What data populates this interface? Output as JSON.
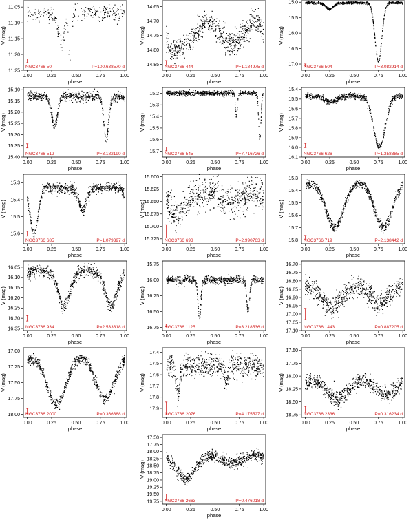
{
  "figure": {
    "x_label": "phase",
    "y_label": "V (mag)",
    "point_color": "#000000",
    "annotation_color": "#d11a1a"
  },
  "chart_data": [
    {
      "type": "scatter",
      "star": "NGC3766 50",
      "period": "P=100.638570 d",
      "yticks": [
        "11.05",
        "11.10",
        "11.15",
        "11.20",
        "11.25"
      ],
      "ylim": [
        11.03,
        11.25
      ],
      "xticks": [
        "0.00",
        "0.25",
        "0.50",
        "0.75",
        "1.00"
      ],
      "xlim": [
        -0.04,
        1.02
      ],
      "base": 11.07,
      "noise": 0.012,
      "dips": [
        [
          0.32,
          0.05,
          0.02
        ],
        [
          0.36,
          0.1,
          0.02
        ],
        [
          0.44,
          0.15,
          0.015
        ]
      ],
      "model": "sparse",
      "err": [
        0.0,
        11.22,
        0.004
      ]
    },
    {
      "type": "scatter",
      "star": "NGC3766 444",
      "period": "P=1.184975 d",
      "yticks": [
        "14.65",
        "14.70",
        "14.75",
        "14.80",
        "14.85"
      ],
      "ylim": [
        14.63,
        14.87
      ],
      "xticks": [
        "0.00",
        "0.25",
        "0.50",
        "0.75",
        "1.00"
      ],
      "xlim": [
        -0.04,
        1.02
      ],
      "base": 14.74,
      "noise": 0.02,
      "dips": [
        [
          0.05,
          0.06,
          0.05
        ]
      ],
      "model": "wave",
      "amp": 0.04,
      "err": [
        0.0,
        14.845,
        0.006
      ]
    },
    {
      "type": "scatter",
      "star": "NGC3766 504",
      "period": "P=3.082914 d",
      "yticks": [
        "15.0",
        "15.5",
        "16.0",
        "16.5",
        "17.0"
      ],
      "ylim": [
        14.95,
        17.2
      ],
      "xticks": [
        "0.00",
        "0.25",
        "0.50",
        "0.75",
        "1.00"
      ],
      "xlim": [
        -0.04,
        1.02
      ],
      "base": 15.02,
      "noise": 0.02,
      "dips": [
        [
          0.25,
          0.2,
          0.04
        ],
        [
          0.75,
          1.9,
          0.035
        ]
      ],
      "model": "eb",
      "err": [
        0.0,
        17.05,
        0.03
      ]
    },
    {
      "type": "scatter",
      "star": "NGC3766 512",
      "period": "P=3.182190 d",
      "yticks": [
        "15.10",
        "15.15",
        "15.20",
        "15.25",
        "15.30",
        "15.35",
        "15.40"
      ],
      "ylim": [
        15.09,
        15.4
      ],
      "xticks": [
        "0.00",
        "0.25",
        "0.50",
        "0.75",
        "1.00"
      ],
      "xlim": [
        -0.04,
        1.02
      ],
      "base": 15.13,
      "noise": 0.01,
      "dips": [
        [
          0.28,
          0.13,
          0.03
        ],
        [
          0.81,
          0.19,
          0.025
        ]
      ],
      "model": "eb",
      "err": [
        0.0,
        15.35,
        0.006
      ]
    },
    {
      "type": "scatter",
      "star": "NGC3766 545",
      "period": "P=7.716726 d",
      "yticks": [
        "15.2",
        "15.3",
        "15.4",
        "15.5",
        "15.6",
        "15.7"
      ],
      "ylim": [
        15.15,
        15.75
      ],
      "xticks": [
        "0.00",
        "0.25",
        "0.50",
        "0.75",
        "1.00"
      ],
      "xlim": [
        -0.04,
        1.02
      ],
      "base": 15.2,
      "noise": 0.01,
      "dips": [
        [
          0.72,
          0.2,
          0.01
        ],
        [
          0.96,
          0.4,
          0.012
        ]
      ],
      "model": "eb",
      "err": [
        0.0,
        15.68,
        0.01
      ]
    },
    {
      "type": "scatter",
      "star": "NGC3766 626",
      "period": "P=1.358385 d",
      "yticks": [
        "15.4",
        "15.5",
        "15.6",
        "15.7",
        "15.8",
        "15.9",
        "16.0",
        "16.1"
      ],
      "ylim": [
        15.38,
        16.1
      ],
      "xticks": [
        "0.00",
        "0.25",
        "0.50",
        "0.75",
        "1.00"
      ],
      "xlim": [
        -0.04,
        1.02
      ],
      "base": 15.47,
      "noise": 0.015,
      "dips": [
        [
          0.26,
          0.06,
          0.06
        ],
        [
          0.76,
          0.53,
          0.06
        ]
      ],
      "model": "eb",
      "err": [
        0.0,
        15.98,
        0.015
      ]
    },
    {
      "type": "scatter",
      "star": "NGC3766 685",
      "period": "P=1.079397 d",
      "yticks": [
        "15.3",
        "15.4",
        "15.5",
        "15.6"
      ],
      "ylim": [
        15.25,
        15.66
      ],
      "xticks": [
        "0.00",
        "0.25",
        "0.50",
        "0.75",
        "1.00"
      ],
      "xlim": [
        -0.04,
        1.02
      ],
      "base": 15.33,
      "noise": 0.015,
      "dips": [
        [
          0.07,
          0.28,
          0.04
        ],
        [
          0.57,
          0.13,
          0.04
        ]
      ],
      "model": "eb",
      "err": [
        0.0,
        15.6,
        0.01
      ]
    },
    {
      "type": "scatter",
      "star": "NGC3766 693",
      "period": "P=2.990763 d",
      "yticks": [
        "15.600",
        "15.625",
        "15.650",
        "15.675",
        "15.700",
        "15.725"
      ],
      "ylim": [
        15.595,
        15.735
      ],
      "xticks": [
        "0.00",
        "0.25",
        "0.50",
        "0.75",
        "1.00"
      ],
      "xlim": [
        -0.04,
        1.02
      ],
      "base": 15.64,
      "noise": 0.015,
      "dips": [
        [
          0.1,
          0.035,
          0.06
        ]
      ],
      "model": "wave",
      "amp": 0.008,
      "err": [
        0.0,
        15.71,
        0.012
      ]
    },
    {
      "type": "scatter",
      "star": "NGC3766 719",
      "period": "P=2.138442 d",
      "yticks": [
        "15.3",
        "15.4",
        "15.5",
        "15.6",
        "15.7",
        "15.8"
      ],
      "ylim": [
        15.27,
        15.83
      ],
      "xticks": [
        "0.00",
        "0.25",
        "0.50",
        "0.75",
        "1.00"
      ],
      "xlim": [
        -0.04,
        1.02
      ],
      "base": 15.33,
      "noise": 0.018,
      "dips": [
        [
          0.3,
          0.37,
          0.09
        ],
        [
          0.8,
          0.37,
          0.09
        ]
      ],
      "model": "ew",
      "err": [
        0.0,
        15.78,
        0.012
      ]
    },
    {
      "type": "scatter",
      "star": "NGC3766 934",
      "period": "P=2.533318 d",
      "yticks": [
        "16.05",
        "16.10",
        "16.15",
        "16.20",
        "16.25",
        "16.30",
        "16.35"
      ],
      "ylim": [
        16.02,
        16.36
      ],
      "xticks": [
        "0.00",
        "0.25",
        "0.50",
        "0.75",
        "1.00"
      ],
      "xlim": [
        -0.04,
        1.02
      ],
      "base": 16.07,
      "noise": 0.015,
      "dips": [
        [
          0.38,
          0.17,
          0.06
        ],
        [
          0.86,
          0.17,
          0.06
        ]
      ],
      "model": "ew",
      "err": [
        0.0,
        16.3,
        0.01
      ]
    },
    {
      "type": "scatter",
      "star": "NGC3766 1125",
      "period": "P=3.218536 d",
      "yticks": [
        "15.75",
        "16.00",
        "16.25",
        "16.50",
        "16.75"
      ],
      "ylim": [
        15.7,
        16.8
      ],
      "xticks": [
        "0.00",
        "0.25",
        "0.50",
        "0.75",
        "1.00"
      ],
      "xlim": [
        -0.04,
        1.02
      ],
      "base": 16.0,
      "noise": 0.03,
      "dips": [
        [
          0.34,
          0.6,
          0.015
        ],
        [
          0.84,
          0.5,
          0.015
        ]
      ],
      "model": "eb",
      "err": [
        0.0,
        16.72,
        0.01
      ]
    },
    {
      "type": "scatter",
      "star": "NGC3766 1443",
      "period": "P=0.887205 d",
      "yticks": [
        "16.70",
        "16.75",
        "16.80",
        "16.85",
        "16.90",
        "16.95",
        "17.00",
        "17.05",
        "17.10"
      ],
      "ylim": [
        16.68,
        17.1
      ],
      "xticks": [
        "0.00",
        "0.25",
        "0.50",
        "0.75",
        "1.00"
      ],
      "xlim": [
        -0.04,
        1.02
      ],
      "base": 16.82,
      "noise": 0.03,
      "dips": [
        [
          0.27,
          0.14,
          0.1
        ],
        [
          0.77,
          0.12,
          0.1
        ]
      ],
      "model": "ew",
      "err": [
        0.0,
        17.0,
        0.03
      ]
    },
    {
      "type": "scatter",
      "star": "NGC3766 2000",
      "period": "P=0.366388 d",
      "yticks": [
        "17.00",
        "17.25",
        "17.50",
        "17.75",
        "18.00"
      ],
      "ylim": [
        16.95,
        18.05
      ],
      "xticks": [
        "0.00",
        "0.25",
        "0.50",
        "0.75",
        "1.00"
      ],
      "xlim": [
        -0.04,
        1.02
      ],
      "base": 17.05,
      "noise": 0.04,
      "dips": [
        [
          0.3,
          0.8,
          0.1
        ],
        [
          0.8,
          0.7,
          0.1
        ]
      ],
      "model": "ew",
      "err": [
        0.0,
        17.95,
        0.03
      ]
    },
    {
      "type": "scatter",
      "star": "NGC3766 2076",
      "period": "P=4.175527 d",
      "yticks": [
        "17.4",
        "17.5",
        "17.6",
        "17.7",
        "17.8",
        "17.9"
      ],
      "ylim": [
        17.36,
        17.98
      ],
      "xticks": [
        "0.00",
        "0.25",
        "0.50",
        "0.75",
        "1.00"
      ],
      "xlim": [
        -0.04,
        1.02
      ],
      "base": 17.52,
      "noise": 0.05,
      "dips": [
        [
          0.12,
          0.25,
          0.02
        ],
        [
          0.62,
          0.15,
          0.02
        ]
      ],
      "model": "eb",
      "err": [
        0.0,
        17.9,
        0.05
      ]
    },
    {
      "type": "scatter",
      "star": "NGC3766 2336",
      "period": "P=0.316234 d",
      "yticks": [
        "17.50",
        "17.75",
        "18.00",
        "18.25",
        "18.50",
        "18.75"
      ],
      "ylim": [
        17.45,
        18.8
      ],
      "xticks": [
        "0.00",
        "0.25",
        "0.50",
        "0.75",
        "1.00"
      ],
      "xlim": [
        -0.04,
        1.02
      ],
      "base": 18.0,
      "noise": 0.07,
      "dips": [
        [
          0.33,
          0.45,
          0.12
        ],
        [
          0.83,
          0.35,
          0.12
        ]
      ],
      "model": "ew",
      "err": [
        0.0,
        18.65,
        0.05
      ]
    },
    {
      "type": "scatter",
      "star": "NGC3766 2663",
      "period": "P=0.476018 d",
      "yticks": [
        "17.50",
        "17.75",
        "18.00",
        "18.25",
        "18.50",
        "18.75",
        "19.00",
        "19.25",
        "19.50",
        "19.75"
      ],
      "ylim": [
        17.4,
        19.85
      ],
      "xticks": [
        "0.00",
        "0.25",
        "0.50",
        "0.75",
        "1.00"
      ],
      "xlim": [
        -0.04,
        1.02
      ],
      "base": 18.1,
      "noise": 0.1,
      "dips": [
        [
          0.2,
          0.85,
          0.1
        ],
        [
          0.68,
          0.3,
          0.1
        ]
      ],
      "model": "ew",
      "err": [
        0.0,
        19.6,
        0.08
      ]
    }
  ]
}
